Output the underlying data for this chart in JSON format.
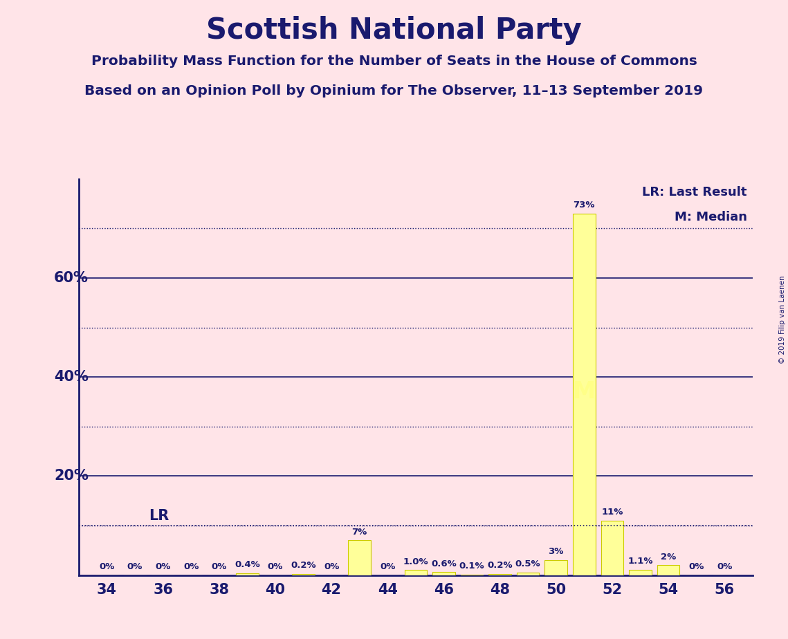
{
  "title": "Scottish National Party",
  "subtitle1": "Probability Mass Function for the Number of Seats in the House of Commons",
  "subtitle2": "Based on an Opinion Poll by Opinium for The Observer, 11–13 September 2019",
  "copyright": "© 2019 Filip van Laenen",
  "seats": [
    34,
    35,
    36,
    37,
    38,
    39,
    40,
    41,
    42,
    43,
    44,
    45,
    46,
    47,
    48,
    49,
    50,
    51,
    52,
    53,
    54,
    55,
    56
  ],
  "probabilities": [
    0.0,
    0.0,
    0.0,
    0.0,
    0.0,
    0.4,
    0.0,
    0.2,
    0.0,
    7.0,
    0.0,
    1.0,
    0.6,
    0.1,
    0.2,
    0.5,
    3.0,
    73.0,
    11.0,
    1.1,
    2.0,
    0.0,
    0.0
  ],
  "bar_color": "#FFFF99",
  "bar_edge_color": "#CCCC00",
  "background_color": "#FFE4E8",
  "text_color": "#1a1a6e",
  "grid_color": "#1a1a6e",
  "lr_seat": 35,
  "median_seat": 51,
  "ylim": [
    0,
    80
  ],
  "ylabel_ticks": [
    20,
    40,
    60
  ],
  "xtick_labels": [
    34,
    36,
    38,
    40,
    42,
    44,
    46,
    48,
    50,
    52,
    54,
    56
  ],
  "legend_lr": "LR: Last Result",
  "legend_m": "M: Median",
  "lr_line_value": 10.0,
  "solid_gridlines": [
    20,
    40,
    60
  ],
  "dotted_gridlines": [
    10,
    30,
    50,
    70
  ],
  "bar_labels": [
    "0%",
    "0%",
    "0%",
    "0%",
    "0%",
    "0.4%",
    "0%",
    "0.2%",
    "0%",
    "7%",
    "0%",
    "1.0%",
    "0.6%",
    "0.1%",
    "0.2%",
    "0.5%",
    "3%",
    "73%",
    "11%",
    "1.1%",
    "2%",
    "0%",
    "0%"
  ]
}
